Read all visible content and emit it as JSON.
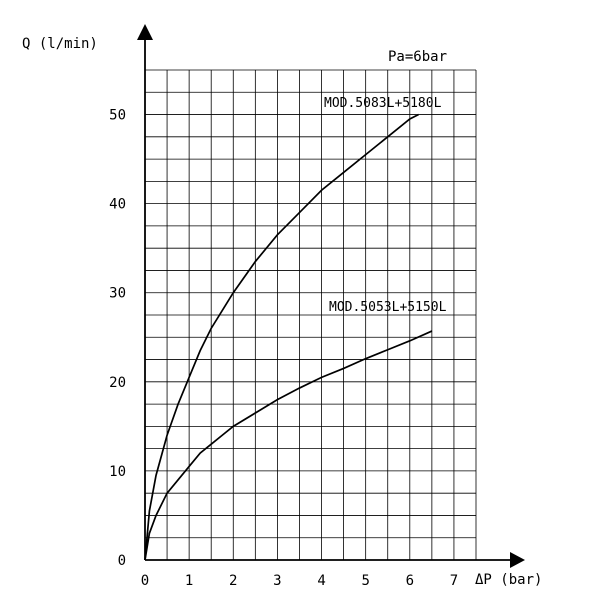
{
  "chart_data": {
    "type": "line",
    "title": "",
    "annotation": "Pa=6bar",
    "xlabel": "ΔP (bar)",
    "ylabel": "Q (l/min)",
    "xlim": [
      0,
      7.5
    ],
    "ylim": [
      0,
      55
    ],
    "x_ticks": [
      "0",
      "1",
      "2",
      "3",
      "4",
      "5",
      "6",
      "7"
    ],
    "y_ticks": [
      "0",
      "10",
      "20",
      "30",
      "40",
      "50"
    ],
    "grid": true,
    "series": [
      {
        "name": "MOD.5083L+5180L",
        "x": [
          0,
          0.1,
          0.25,
          0.5,
          0.75,
          1.0,
          1.25,
          1.5,
          1.75,
          2.0,
          2.5,
          3.0,
          3.5,
          4.0,
          4.5,
          5.0,
          5.5,
          6.0,
          6.2
        ],
        "y": [
          0,
          5.5,
          9.5,
          14,
          17.5,
          20.5,
          23.5,
          26,
          28,
          30,
          33.5,
          36.5,
          39,
          41.5,
          43.5,
          45.5,
          47.5,
          49.5,
          50
        ]
      },
      {
        "name": "MOD.5053L+5150L",
        "x": [
          0,
          0.1,
          0.25,
          0.5,
          0.75,
          1.0,
          1.25,
          1.5,
          1.75,
          2.0,
          2.5,
          3.0,
          3.5,
          4.0,
          4.5,
          5.0,
          5.5,
          6.0,
          6.5
        ],
        "y": [
          0,
          3,
          5,
          7.5,
          9,
          10.5,
          12,
          13,
          14,
          15,
          16.5,
          18,
          19.3,
          20.5,
          21.5,
          22.6,
          23.6,
          24.6,
          25.7
        ]
      }
    ]
  }
}
